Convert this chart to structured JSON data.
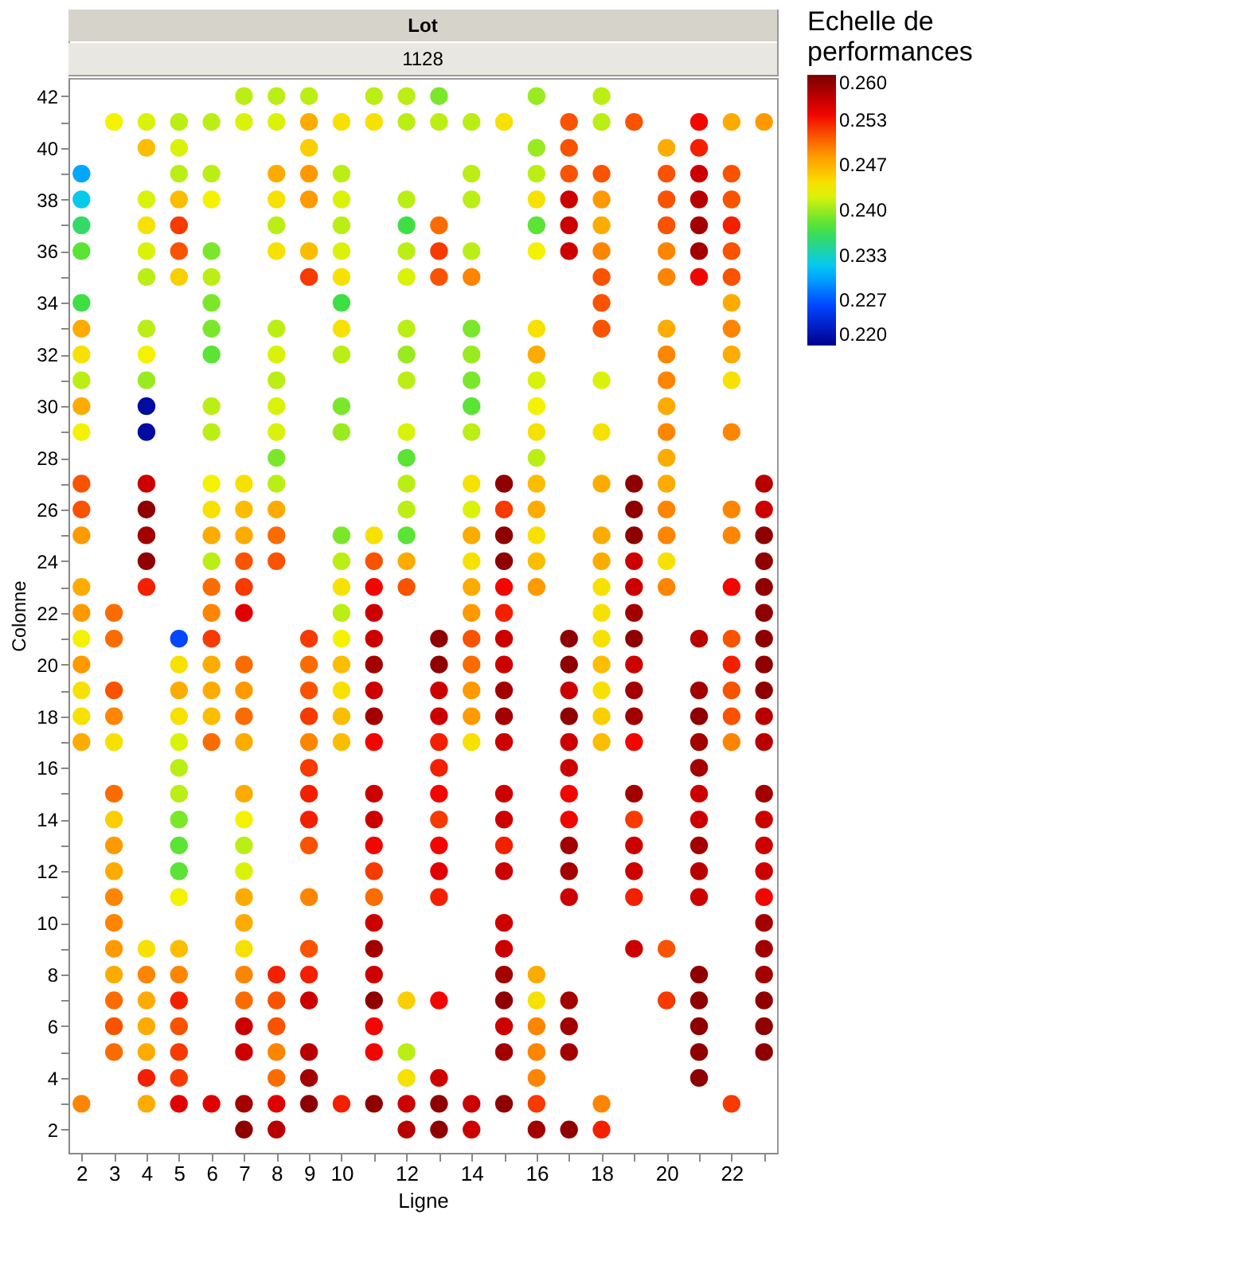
{
  "chart_data": {
    "type": "scatter",
    "title": "Lot",
    "subtitle": "1128",
    "xlabel": "Ligne",
    "ylabel": "Colonne",
    "clabel": "Echelle de performances",
    "marker": "circle",
    "grid": false,
    "xlim": [
      1.6,
      23.4
    ],
    "ylim": [
      1.1,
      42.7
    ],
    "xticks": [
      2,
      3,
      4,
      5,
      6,
      7,
      8,
      9,
      10,
      {
        "value": 11,
        "label": null
      },
      12,
      {
        "value": 13,
        "label": null
      },
      14,
      {
        "value": 15,
        "label": null
      },
      16,
      {
        "value": 17,
        "label": null
      },
      18,
      {
        "value": 19,
        "label": null
      },
      20,
      {
        "value": 21,
        "label": null
      },
      22,
      {
        "value": 23,
        "label": null
      }
    ],
    "yticks": [
      2,
      {
        "value": 3,
        "label": null
      },
      4,
      {
        "value": 5,
        "label": null
      },
      6,
      {
        "value": 7,
        "label": null
      },
      8,
      {
        "value": 9,
        "label": null
      },
      10,
      {
        "value": 11,
        "label": null
      },
      12,
      {
        "value": 13,
        "label": null
      },
      14,
      {
        "value": 15,
        "label": null
      },
      16,
      {
        "value": 17,
        "label": null
      },
      18,
      {
        "value": 19,
        "label": null
      },
      20,
      {
        "value": 21,
        "label": null
      },
      22,
      {
        "value": 23,
        "label": null
      },
      24,
      {
        "value": 25,
        "label": null
      },
      26,
      {
        "value": 27,
        "label": null
      },
      28,
      {
        "value": 29,
        "label": null
      },
      30,
      {
        "value": 31,
        "label": null
      },
      32,
      {
        "value": 33,
        "label": null
      },
      34,
      {
        "value": 35,
        "label": null
      },
      36,
      {
        "value": 37,
        "label": null
      },
      38,
      {
        "value": 39,
        "label": null
      },
      40,
      {
        "value": 41,
        "label": null
      },
      42
    ],
    "clim": [
      0.22,
      0.26
    ],
    "cticks": [
      {
        "value": 0.22,
        "label": "0.220"
      },
      {
        "value": 0.2267,
        "label": "0.227"
      },
      {
        "value": 0.2333,
        "label": "0.233"
      },
      {
        "value": 0.24,
        "label": "0.240"
      },
      {
        "value": 0.2467,
        "label": "0.247"
      },
      {
        "value": 0.2533,
        "label": "0.253"
      },
      {
        "value": 0.26,
        "label": "0.260"
      }
    ],
    "x": [
      2,
      2,
      2,
      2,
      2,
      2,
      2,
      2,
      2,
      2,
      2,
      2,
      2,
      2,
      2,
      2,
      2,
      2,
      2,
      2,
      2,
      3,
      3,
      3,
      3,
      3,
      3,
      3,
      3,
      3,
      3,
      3,
      3,
      3,
      3,
      3,
      3,
      3,
      4,
      4,
      4,
      4,
      4,
      4,
      4,
      4,
      4,
      4,
      4,
      4,
      4,
      4,
      4,
      4,
      4,
      4,
      4,
      4,
      4,
      4,
      4,
      5,
      5,
      5,
      5,
      5,
      5,
      5,
      5,
      5,
      5,
      5,
      5,
      5,
      5,
      5,
      5,
      5,
      5,
      5,
      5,
      5,
      5,
      5,
      5,
      5,
      6,
      6,
      6,
      6,
      6,
      6,
      6,
      6,
      6,
      6,
      6,
      6,
      6,
      6,
      6,
      6,
      6,
      6,
      6,
      6,
      6,
      6,
      7,
      7,
      7,
      7,
      7,
      7,
      7,
      7,
      7,
      7,
      7,
      7,
      7,
      7,
      7,
      7,
      7,
      7,
      7,
      7,
      7,
      7,
      7,
      7,
      7,
      8,
      8,
      8,
      8,
      8,
      8,
      8,
      8,
      8,
      8,
      8,
      8,
      8,
      8,
      8,
      8,
      8,
      8,
      8,
      8,
      8,
      8,
      8,
      9,
      9,
      9,
      9,
      9,
      9,
      9,
      9,
      9,
      9,
      9,
      9,
      9,
      9,
      9,
      9,
      9,
      9,
      9,
      9,
      9,
      9,
      9,
      10,
      10,
      10,
      10,
      10,
      10,
      10,
      10,
      10,
      10,
      10,
      10,
      10,
      10,
      10,
      10,
      10,
      10,
      10,
      10,
      10,
      11,
      11,
      11,
      11,
      11,
      11,
      11,
      11,
      11,
      11,
      11,
      11,
      11,
      11,
      11,
      11,
      11,
      11,
      11,
      11,
      11,
      11,
      11,
      12,
      12,
      12,
      12,
      12,
      12,
      12,
      12,
      12,
      12,
      12,
      12,
      12,
      12,
      12,
      12,
      12,
      12,
      12,
      12,
      12,
      13,
      13,
      13,
      13,
      13,
      13,
      13,
      13,
      13,
      13,
      13,
      13,
      13,
      13,
      13,
      13,
      13,
      13,
      13,
      13,
      14,
      14,
      14,
      14,
      14,
      14,
      14,
      14,
      14,
      14,
      14,
      14,
      14,
      14,
      14,
      14,
      14,
      14,
      14,
      14,
      14,
      14,
      14,
      15,
      15,
      15,
      15,
      15,
      15,
      15,
      15,
      15,
      15,
      15,
      15,
      15,
      15,
      15,
      15,
      15,
      15,
      15,
      15,
      15,
      15,
      15,
      16,
      16,
      16,
      16,
      16,
      16,
      16,
      16,
      16,
      16,
      16,
      16,
      16,
      16,
      16,
      16,
      16,
      16,
      16,
      16,
      16,
      16,
      16,
      16,
      17,
      17,
      17,
      17,
      17,
      17,
      17,
      17,
      17,
      17,
      17,
      17,
      17,
      17,
      17,
      17,
      17,
      17,
      17,
      17,
      17,
      18,
      18,
      18,
      18,
      18,
      18,
      18,
      18,
      18,
      18,
      18,
      18,
      18,
      18,
      18,
      18,
      18,
      18,
      18,
      18,
      18,
      18,
      18,
      19,
      19,
      19,
      19,
      19,
      19,
      19,
      19,
      19,
      19,
      19,
      19,
      19,
      19,
      19,
      19,
      19,
      19,
      20,
      20,
      20,
      20,
      20,
      20,
      20,
      20,
      20,
      20,
      20,
      20,
      20,
      20,
      20,
      20,
      20,
      20,
      20,
      21,
      21,
      21,
      21,
      21,
      21,
      21,
      21,
      21,
      21,
      21,
      21,
      21,
      21,
      21,
      21,
      21,
      21,
      21,
      21,
      21,
      21,
      22,
      22,
      22,
      22,
      22,
      22,
      22,
      22,
      22,
      22,
      22,
      22,
      22,
      22,
      22,
      22,
      22,
      22,
      22,
      22,
      23,
      23,
      23,
      23,
      23,
      23,
      23,
      23,
      23,
      23,
      23,
      23,
      23,
      23,
      23,
      23,
      23,
      23,
      23,
      23,
      23,
      23,
      23
    ],
    "values": [
      39,
      38,
      37,
      36,
      34,
      33,
      32,
      31,
      30,
      29,
      27,
      26,
      25,
      23,
      22,
      21,
      20,
      19,
      18,
      17,
      3,
      41,
      22,
      21,
      19,
      18,
      17,
      15,
      14,
      13,
      12,
      11,
      10,
      9,
      8,
      7,
      6,
      5,
      41,
      40,
      38,
      37,
      36,
      35,
      33,
      32,
      31,
      30,
      29,
      27,
      26,
      25,
      24,
      23,
      9,
      8,
      7,
      6,
      5,
      4,
      3,
      41,
      40,
      39,
      38,
      37,
      36,
      35,
      21,
      20,
      19,
      18,
      17,
      16,
      15,
      14,
      13,
      12,
      11,
      9,
      8,
      7,
      6,
      5,
      4,
      3,
      41,
      39,
      38,
      36,
      35,
      34,
      33,
      32,
      30,
      29,
      27,
      26,
      25,
      24,
      23,
      22,
      21,
      20,
      19,
      18,
      17,
      3,
      42,
      41,
      27,
      26,
      25,
      24,
      23,
      22,
      20,
      19,
      18,
      17,
      15,
      14,
      13,
      12,
      11,
      10,
      9,
      8,
      7,
      6,
      5,
      3,
      2,
      42,
      41,
      39,
      38,
      37,
      36,
      33,
      32,
      31,
      30,
      29,
      28,
      27,
      26,
      25,
      24,
      8,
      7,
      6,
      5,
      4,
      3,
      2,
      42,
      41,
      40,
      39,
      38,
      36,
      35,
      21,
      20,
      19,
      18,
      17,
      16,
      15,
      14,
      13,
      11,
      9,
      8,
      7,
      5,
      4,
      3,
      41,
      39,
      38,
      37,
      36,
      35,
      34,
      33,
      32,
      30,
      29,
      25,
      24,
      23,
      22,
      21,
      20,
      19,
      18,
      17,
      3,
      42,
      41,
      25,
      24,
      23,
      22,
      21,
      20,
      19,
      18,
      17,
      15,
      14,
      13,
      12,
      11,
      10,
      9,
      8,
      7,
      6,
      5,
      3,
      42,
      41,
      38,
      37,
      36,
      35,
      33,
      32,
      31,
      29,
      28,
      27,
      26,
      25,
      24,
      23,
      7,
      5,
      4,
      3,
      2,
      42,
      41,
      37,
      36,
      35,
      21,
      20,
      19,
      18,
      17,
      16,
      15,
      14,
      13,
      12,
      11,
      7,
      4,
      3,
      2,
      41,
      39,
      38,
      36,
      35,
      33,
      32,
      31,
      30,
      29,
      27,
      26,
      25,
      24,
      23,
      22,
      21,
      20,
      19,
      18,
      17,
      3,
      2,
      41,
      27,
      26,
      25,
      24,
      23,
      22,
      21,
      20,
      19,
      18,
      17,
      15,
      14,
      13,
      12,
      10,
      9,
      8,
      7,
      6,
      5,
      3,
      42,
      40,
      39,
      38,
      37,
      36,
      33,
      32,
      31,
      30,
      29,
      28,
      27,
      26,
      25,
      24,
      23,
      8,
      7,
      6,
      5,
      4,
      3,
      2,
      41,
      40,
      39,
      38,
      37,
      36,
      21,
      20,
      19,
      18,
      17,
      16,
      15,
      14,
      13,
      12,
      11,
      7,
      6,
      5,
      2,
      42,
      41,
      39,
      38,
      37,
      36,
      35,
      34,
      33,
      31,
      29,
      27,
      25,
      24,
      23,
      22,
      21,
      20,
      19,
      18,
      17,
      3,
      2,
      41,
      27,
      26,
      25,
      24,
      23,
      22,
      21,
      20,
      19,
      18,
      17,
      15,
      14,
      13,
      12,
      11,
      9,
      40,
      39,
      38,
      37,
      36,
      35,
      33,
      32,
      31,
      30,
      29,
      28,
      27,
      26,
      25,
      24,
      23,
      9,
      7,
      41,
      40,
      39,
      38,
      37,
      36,
      35,
      21,
      19,
      18,
      17,
      16,
      15,
      14,
      13,
      12,
      11,
      8,
      7,
      6,
      5,
      4,
      41,
      39,
      38,
      37,
      36,
      35,
      34,
      33,
      32,
      31,
      29,
      26,
      25,
      23,
      21,
      20,
      19,
      18,
      17,
      3,
      41,
      27,
      26,
      25,
      24,
      23,
      22,
      21,
      20,
      19,
      18,
      17,
      15,
      14,
      13,
      12,
      11,
      10,
      9,
      8,
      7,
      6,
      5
    ],
    "cvalues": [
      0.23,
      0.232,
      0.236,
      0.238,
      0.237,
      0.247,
      0.244,
      0.241,
      0.247,
      0.243,
      0.251,
      0.251,
      0.248,
      0.247,
      0.248,
      0.243,
      0.248,
      0.244,
      0.244,
      0.247,
      0.249,
      0.243,
      0.25,
      0.25,
      0.251,
      0.249,
      0.244,
      0.25,
      0.245,
      0.248,
      0.247,
      0.249,
      0.249,
      0.248,
      0.247,
      0.25,
      0.251,
      0.25,
      0.242,
      0.246,
      0.242,
      0.244,
      0.242,
      0.241,
      0.241,
      0.243,
      0.24,
      0.221,
      0.221,
      0.256,
      0.259,
      0.258,
      0.259,
      0.253,
      0.244,
      0.249,
      0.247,
      0.247,
      0.247,
      0.253,
      0.247,
      0.241,
      0.242,
      0.241,
      0.246,
      0.252,
      0.251,
      0.245,
      0.226,
      0.244,
      0.247,
      0.244,
      0.242,
      0.241,
      0.241,
      0.239,
      0.238,
      0.238,
      0.243,
      0.246,
      0.249,
      0.253,
      0.251,
      0.252,
      0.252,
      0.255,
      0.241,
      0.241,
      0.243,
      0.239,
      0.241,
      0.239,
      0.239,
      0.238,
      0.241,
      0.241,
      0.243,
      0.244,
      0.247,
      0.241,
      0.25,
      0.249,
      0.252,
      0.247,
      0.247,
      0.246,
      0.25,
      0.255,
      0.241,
      0.242,
      0.244,
      0.246,
      0.247,
      0.251,
      0.252,
      0.255,
      0.25,
      0.248,
      0.25,
      0.247,
      0.247,
      0.243,
      0.241,
      0.242,
      0.247,
      0.247,
      0.244,
      0.249,
      0.25,
      0.256,
      0.256,
      0.258,
      0.259,
      0.241,
      0.242,
      0.247,
      0.244,
      0.241,
      0.244,
      0.241,
      0.242,
      0.241,
      0.242,
      0.242,
      0.239,
      0.241,
      0.247,
      0.25,
      0.251,
      0.253,
      0.251,
      0.251,
      0.249,
      0.25,
      0.255,
      0.257,
      0.241,
      0.247,
      0.245,
      0.248,
      0.248,
      0.246,
      0.252,
      0.252,
      0.25,
      0.251,
      0.252,
      0.249,
      0.252,
      0.253,
      0.253,
      0.251,
      0.249,
      0.251,
      0.253,
      0.256,
      0.257,
      0.258,
      0.259,
      0.244,
      0.241,
      0.242,
      0.241,
      0.242,
      0.244,
      0.237,
      0.244,
      0.241,
      0.239,
      0.24,
      0.239,
      0.241,
      0.244,
      0.241,
      0.243,
      0.246,
      0.244,
      0.246,
      0.246,
      0.253,
      0.241,
      0.244,
      0.244,
      0.251,
      0.254,
      0.256,
      0.256,
      0.258,
      0.256,
      0.258,
      0.254,
      0.256,
      0.256,
      0.254,
      0.252,
      0.25,
      0.256,
      0.258,
      0.256,
      0.259,
      0.254,
      0.254,
      0.259,
      0.241,
      0.241,
      0.241,
      0.237,
      0.241,
      0.242,
      0.241,
      0.24,
      0.241,
      0.242,
      0.238,
      0.241,
      0.241,
      0.238,
      0.247,
      0.251,
      0.245,
      0.241,
      0.244,
      0.256,
      0.257,
      0.239,
      0.241,
      0.25,
      0.252,
      0.251,
      0.259,
      0.259,
      0.256,
      0.256,
      0.253,
      0.253,
      0.254,
      0.252,
      0.254,
      0.255,
      0.253,
      0.254,
      0.256,
      0.259,
      0.259,
      0.241,
      0.241,
      0.241,
      0.241,
      0.249,
      0.239,
      0.24,
      0.239,
      0.238,
      0.241,
      0.244,
      0.242,
      0.247,
      0.244,
      0.247,
      0.248,
      0.251,
      0.25,
      0.248,
      0.248,
      0.244,
      0.256,
      0.256,
      0.244,
      0.259,
      0.252,
      0.259,
      0.259,
      0.254,
      0.253,
      0.256,
      0.256,
      0.258,
      0.258,
      0.256,
      0.256,
      0.256,
      0.253,
      0.256,
      0.256,
      0.256,
      0.258,
      0.259,
      0.256,
      0.258,
      0.259,
      0.24,
      0.24,
      0.241,
      0.244,
      0.238,
      0.243,
      0.244,
      0.247,
      0.242,
      0.243,
      0.244,
      0.241,
      0.246,
      0.247,
      0.244,
      0.246,
      0.248,
      0.247,
      0.244,
      0.249,
      0.249,
      0.249,
      0.252,
      0.258,
      0.251,
      0.251,
      0.251,
      0.256,
      0.256,
      0.256,
      0.259,
      0.259,
      0.256,
      0.259,
      0.256,
      0.256,
      0.254,
      0.254,
      0.258,
      0.258,
      0.256,
      0.258,
      0.258,
      0.258,
      0.259,
      0.241,
      0.241,
      0.251,
      0.248,
      0.247,
      0.249,
      0.251,
      0.251,
      0.251,
      0.242,
      0.244,
      0.247,
      0.247,
      0.247,
      0.244,
      0.244,
      0.244,
      0.246,
      0.244,
      0.245,
      0.246,
      0.249,
      0.253,
      0.251,
      0.259,
      0.259,
      0.259,
      0.256,
      0.256,
      0.258,
      0.259,
      0.256,
      0.258,
      0.258,
      0.254,
      0.258,
      0.252,
      0.256,
      0.256,
      0.253,
      0.256,
      0.247,
      0.251,
      0.251,
      0.251,
      0.249,
      0.249,
      0.247,
      0.249,
      0.249,
      0.247,
      0.249,
      0.247,
      0.247,
      0.249,
      0.249,
      0.244,
      0.249,
      0.251,
      0.252,
      0.254,
      0.253,
      0.256,
      0.257,
      0.258,
      0.258,
      0.254,
      0.257,
      0.258,
      0.259,
      0.258,
      0.258,
      0.256,
      0.256,
      0.258,
      0.257,
      0.256,
      0.259,
      0.259,
      0.259,
      0.259,
      0.259,
      0.247,
      0.251,
      0.251,
      0.253,
      0.251,
      0.251,
      0.247,
      0.249,
      0.247,
      0.244,
      0.249,
      0.249,
      0.249,
      0.254,
      0.251,
      0.253,
      0.251,
      0.251,
      0.249,
      0.252,
      0.248,
      0.257,
      0.256,
      0.259,
      0.259,
      0.259,
      0.259,
      0.259,
      0.259,
      0.259,
      0.257,
      0.257,
      0.258,
      0.256,
      0.256,
      0.256,
      0.254,
      0.258,
      0.258,
      0.258,
      0.259,
      0.259,
      0.259
    ]
  }
}
